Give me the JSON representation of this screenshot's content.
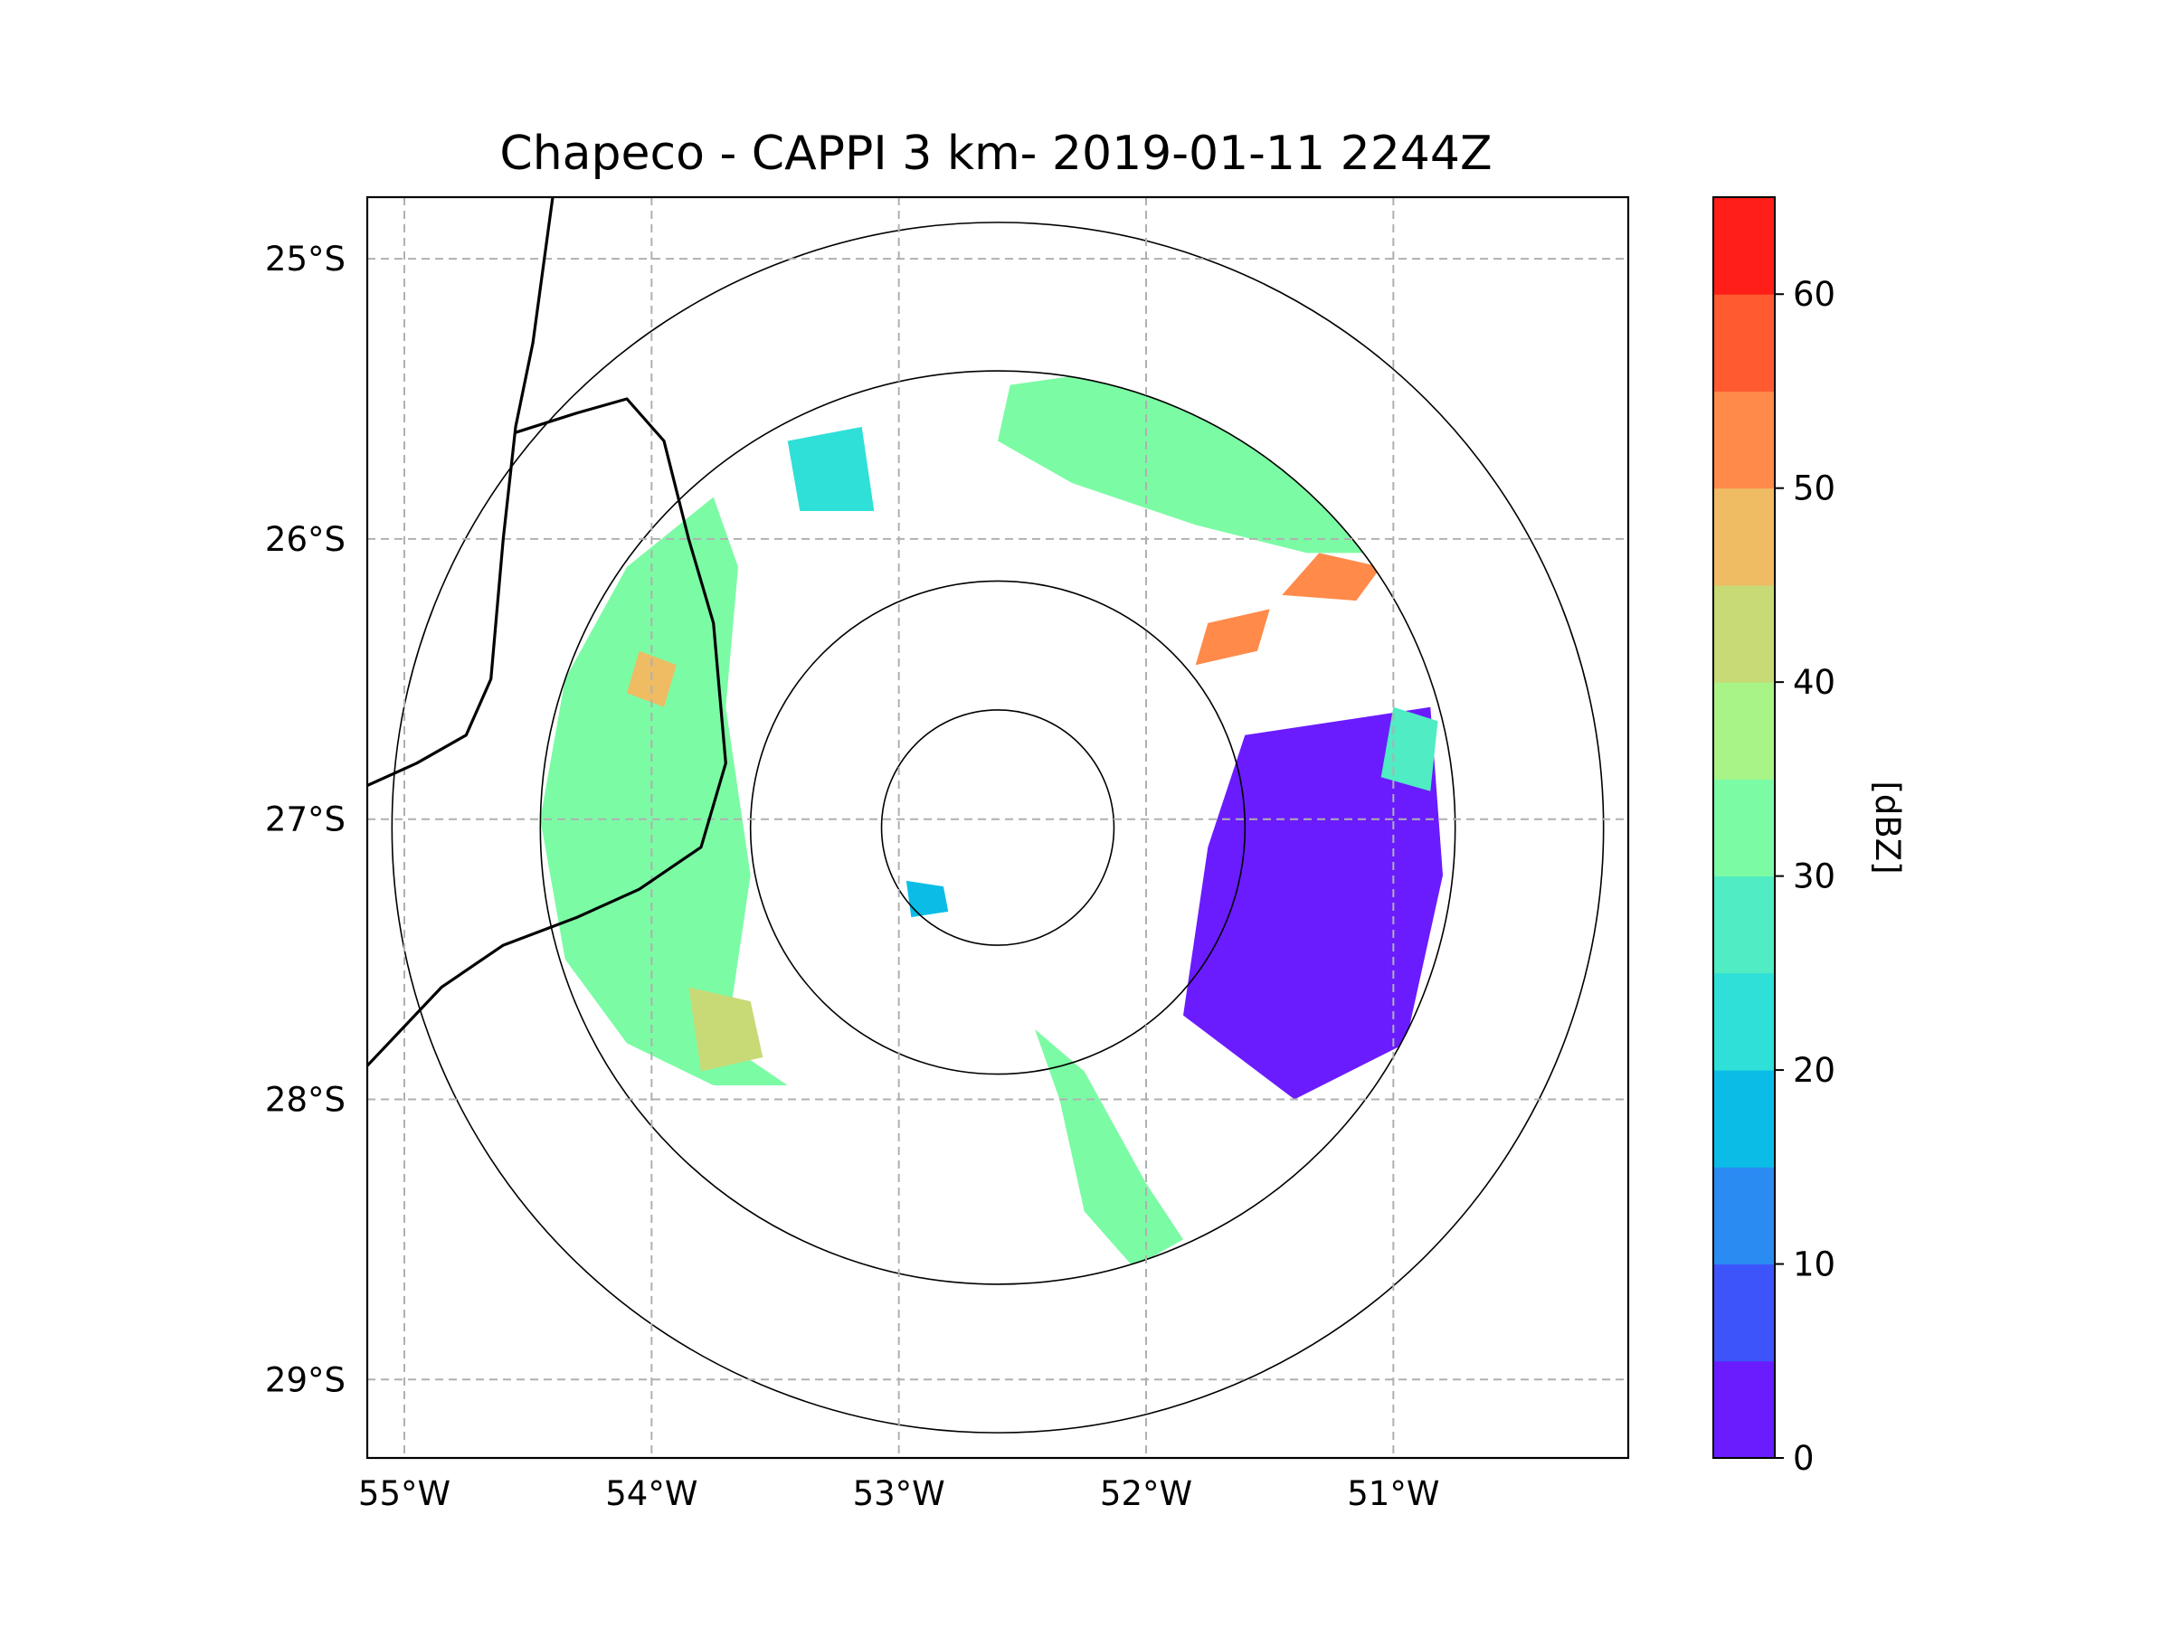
{
  "chart_data": {
    "type": "heatmap",
    "title": "Chapeco - CAPPI 3 km- 2019-01-11 2244Z",
    "lon_range": [
      -55.15,
      -50.05
    ],
    "lat_range": [
      -29.28,
      -24.78
    ],
    "radar_center": {
      "lon": -52.6,
      "lat": -27.03
    },
    "range_rings": [
      {
        "name": "ring-1",
        "lon_radius": 0.47,
        "lat_radius": 0.42
      },
      {
        "name": "ring-2",
        "lon_radius": 1.0,
        "lat_radius": 0.88
      },
      {
        "name": "ring-3",
        "lon_radius": 1.85,
        "lat_radius": 1.63
      },
      {
        "name": "ring-4",
        "lon_radius": 2.45,
        "lat_radius": 2.16
      }
    ],
    "x_ticks": [
      {
        "value": -55,
        "label": "55°W"
      },
      {
        "value": -54,
        "label": "54°W"
      },
      {
        "value": -53,
        "label": "53°W"
      },
      {
        "value": -52,
        "label": "52°W"
      },
      {
        "value": -51,
        "label": "51°W"
      }
    ],
    "y_ticks": [
      {
        "value": -25,
        "label": "25°S"
      },
      {
        "value": -26,
        "label": "26°S"
      },
      {
        "value": -27,
        "label": "27°S"
      },
      {
        "value": -28,
        "label": "28°S"
      },
      {
        "value": -29,
        "label": "29°S"
      }
    ],
    "colorbar": {
      "label": "[dBZ]",
      "vmin": 0,
      "vmax": 65,
      "levels": [
        0,
        5,
        10,
        15,
        20,
        25,
        30,
        35,
        40,
        45,
        50,
        55,
        60,
        65
      ],
      "colors": [
        "#6a1cff",
        "#3e54fb",
        "#2a8cf3",
        "#0bbde6",
        "#2ee0d8",
        "#50ecc3",
        "#7cfba5",
        "#a8f486",
        "#c8da76",
        "#efbb63",
        "#ff8a4a",
        "#ff5a30",
        "#ff1f18"
      ],
      "ticks": [
        {
          "value": 0,
          "label": "0"
        },
        {
          "value": 10,
          "label": "10"
        },
        {
          "value": 20,
          "label": "20"
        },
        {
          "value": 30,
          "label": "30"
        },
        {
          "value": 40,
          "label": "40"
        },
        {
          "value": 50,
          "label": "50"
        },
        {
          "value": 60,
          "label": "60"
        }
      ]
    },
    "echo_regions": [
      {
        "name": "echo-northeast-band",
        "dbz": 32,
        "points": [
          [
            -52.55,
            -25.45
          ],
          [
            -52.15,
            -25.4
          ],
          [
            -51.7,
            -25.55
          ],
          [
            -51.3,
            -25.8
          ],
          [
            -51.05,
            -26.05
          ],
          [
            -51.35,
            -26.05
          ],
          [
            -51.8,
            -25.95
          ],
          [
            -52.3,
            -25.8
          ],
          [
            -52.6,
            -25.65
          ]
        ]
      },
      {
        "name": "echo-northeast-core-1",
        "dbz": 52,
        "points": [
          [
            -51.3,
            -26.05
          ],
          [
            -51.05,
            -26.1
          ],
          [
            -51.15,
            -26.22
          ],
          [
            -51.45,
            -26.2
          ]
        ]
      },
      {
        "name": "echo-northeast-core-2",
        "dbz": 52,
        "points": [
          [
            -51.75,
            -26.3
          ],
          [
            -51.5,
            -26.25
          ],
          [
            -51.55,
            -26.4
          ],
          [
            -51.8,
            -26.45
          ]
        ]
      },
      {
        "name": "echo-west-band",
        "dbz": 30,
        "points": [
          [
            -53.75,
            -25.85
          ],
          [
            -53.65,
            -26.1
          ],
          [
            -53.7,
            -26.6
          ],
          [
            -53.6,
            -27.2
          ],
          [
            -53.7,
            -27.8
          ],
          [
            -53.45,
            -27.95
          ],
          [
            -53.75,
            -27.95
          ],
          [
            -54.1,
            -27.8
          ],
          [
            -54.35,
            -27.5
          ],
          [
            -54.45,
            -27.0
          ],
          [
            -54.35,
            -26.5
          ],
          [
            -54.1,
            -26.1
          ]
        ]
      },
      {
        "name": "echo-west-core",
        "dbz": 47,
        "points": [
          [
            -54.05,
            -26.4
          ],
          [
            -53.9,
            -26.45
          ],
          [
            -53.95,
            -26.6
          ],
          [
            -54.1,
            -26.55
          ]
        ]
      },
      {
        "name": "echo-southwest-core",
        "dbz": 40,
        "points": [
          [
            -53.85,
            -27.6
          ],
          [
            -53.6,
            -27.65
          ],
          [
            -53.55,
            -27.85
          ],
          [
            -53.8,
            -27.9
          ]
        ]
      },
      {
        "name": "echo-south-band",
        "dbz": 33,
        "points": [
          [
            -52.45,
            -27.75
          ],
          [
            -52.25,
            -27.9
          ],
          [
            -52.0,
            -28.3
          ],
          [
            -51.85,
            -28.5
          ],
          [
            -52.05,
            -28.6
          ],
          [
            -52.25,
            -28.4
          ],
          [
            -52.35,
            -28.0
          ]
        ]
      },
      {
        "name": "echo-east-band",
        "dbz": 3,
        "points": [
          [
            -51.6,
            -26.7
          ],
          [
            -50.85,
            -26.6
          ],
          [
            -50.8,
            -27.2
          ],
          [
            -50.95,
            -27.8
          ],
          [
            -51.4,
            -28.0
          ],
          [
            -51.85,
            -27.7
          ],
          [
            -51.75,
            -27.1
          ]
        ]
      },
      {
        "name": "echo-east-cell",
        "dbz": 25,
        "points": [
          [
            -51.0,
            -26.6
          ],
          [
            -50.82,
            -26.65
          ],
          [
            -50.85,
            -26.9
          ],
          [
            -51.05,
            -26.85
          ]
        ]
      },
      {
        "name": "echo-north-cell",
        "dbz": 22,
        "points": [
          [
            -53.45,
            -25.65
          ],
          [
            -53.15,
            -25.6
          ],
          [
            -53.1,
            -25.9
          ],
          [
            -53.4,
            -25.9
          ]
        ]
      },
      {
        "name": "echo-inner-cell",
        "dbz": 18,
        "points": [
          [
            -52.97,
            -27.22
          ],
          [
            -52.82,
            -27.24
          ],
          [
            -52.8,
            -27.33
          ],
          [
            -52.95,
            -27.35
          ]
        ]
      }
    ],
    "borders": [
      {
        "name": "border-uruguay-river",
        "points": [
          [
            -54.4,
            -24.78
          ],
          [
            -54.48,
            -25.3
          ],
          [
            -54.55,
            -25.6
          ],
          [
            -54.6,
            -26.0
          ],
          [
            -54.65,
            -26.5
          ],
          [
            -54.75,
            -26.7
          ],
          [
            -54.95,
            -26.8
          ],
          [
            -55.15,
            -26.88
          ]
        ]
      },
      {
        "name": "border-misiones",
        "points": [
          [
            -54.55,
            -25.62
          ],
          [
            -54.3,
            -25.55
          ],
          [
            -54.1,
            -25.5
          ],
          [
            -53.95,
            -25.65
          ],
          [
            -53.85,
            -26.0
          ],
          [
            -53.75,
            -26.3
          ],
          [
            -53.7,
            -26.8
          ],
          [
            -53.8,
            -27.1
          ],
          [
            -54.05,
            -27.25
          ],
          [
            -54.3,
            -27.35
          ],
          [
            -54.6,
            -27.45
          ],
          [
            -54.85,
            -27.6
          ],
          [
            -55.15,
            -27.88
          ]
        ]
      }
    ]
  }
}
